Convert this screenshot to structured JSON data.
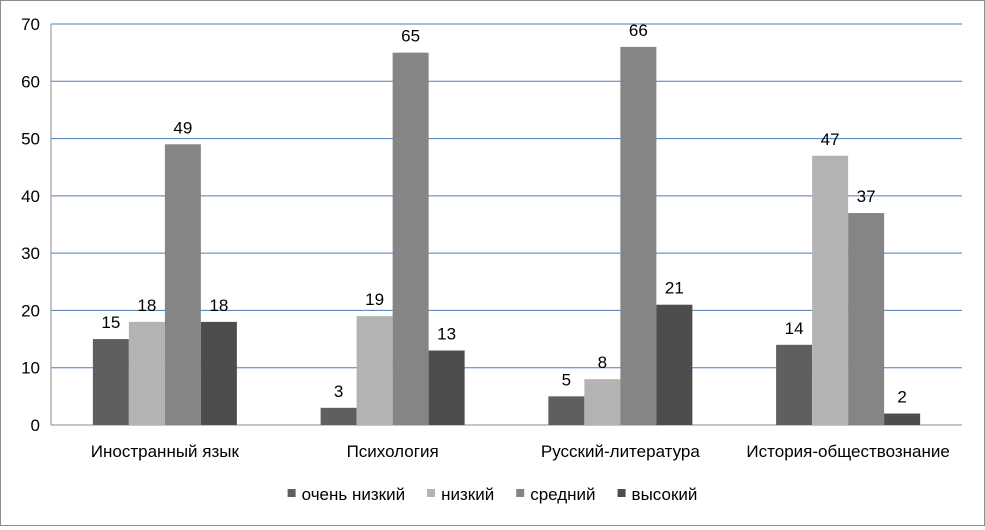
{
  "chart_data": {
    "type": "bar",
    "title": "",
    "xlabel": "",
    "ylabel": "",
    "ylim": [
      0,
      70
    ],
    "yticks": [
      0,
      10,
      20,
      30,
      40,
      50,
      60,
      70
    ],
    "grid": true,
    "legend_position": "bottom",
    "categories": [
      "Иностранный язык",
      "Психология",
      "Русский-литература",
      "История-обществознание"
    ],
    "series": [
      {
        "name": "очень низкий",
        "color": "#5f5f5f",
        "values": [
          15,
          3,
          5,
          14
        ]
      },
      {
        "name": "низкий",
        "color": "#b3b3b3",
        "values": [
          18,
          19,
          8,
          47
        ]
      },
      {
        "name": "средний",
        "color": "#858585",
        "values": [
          49,
          65,
          66,
          37
        ]
      },
      {
        "name": "высокий",
        "color": "#4d4d4d",
        "values": [
          18,
          13,
          21,
          2
        ]
      }
    ],
    "gridline_color": "#4a7ebb"
  }
}
